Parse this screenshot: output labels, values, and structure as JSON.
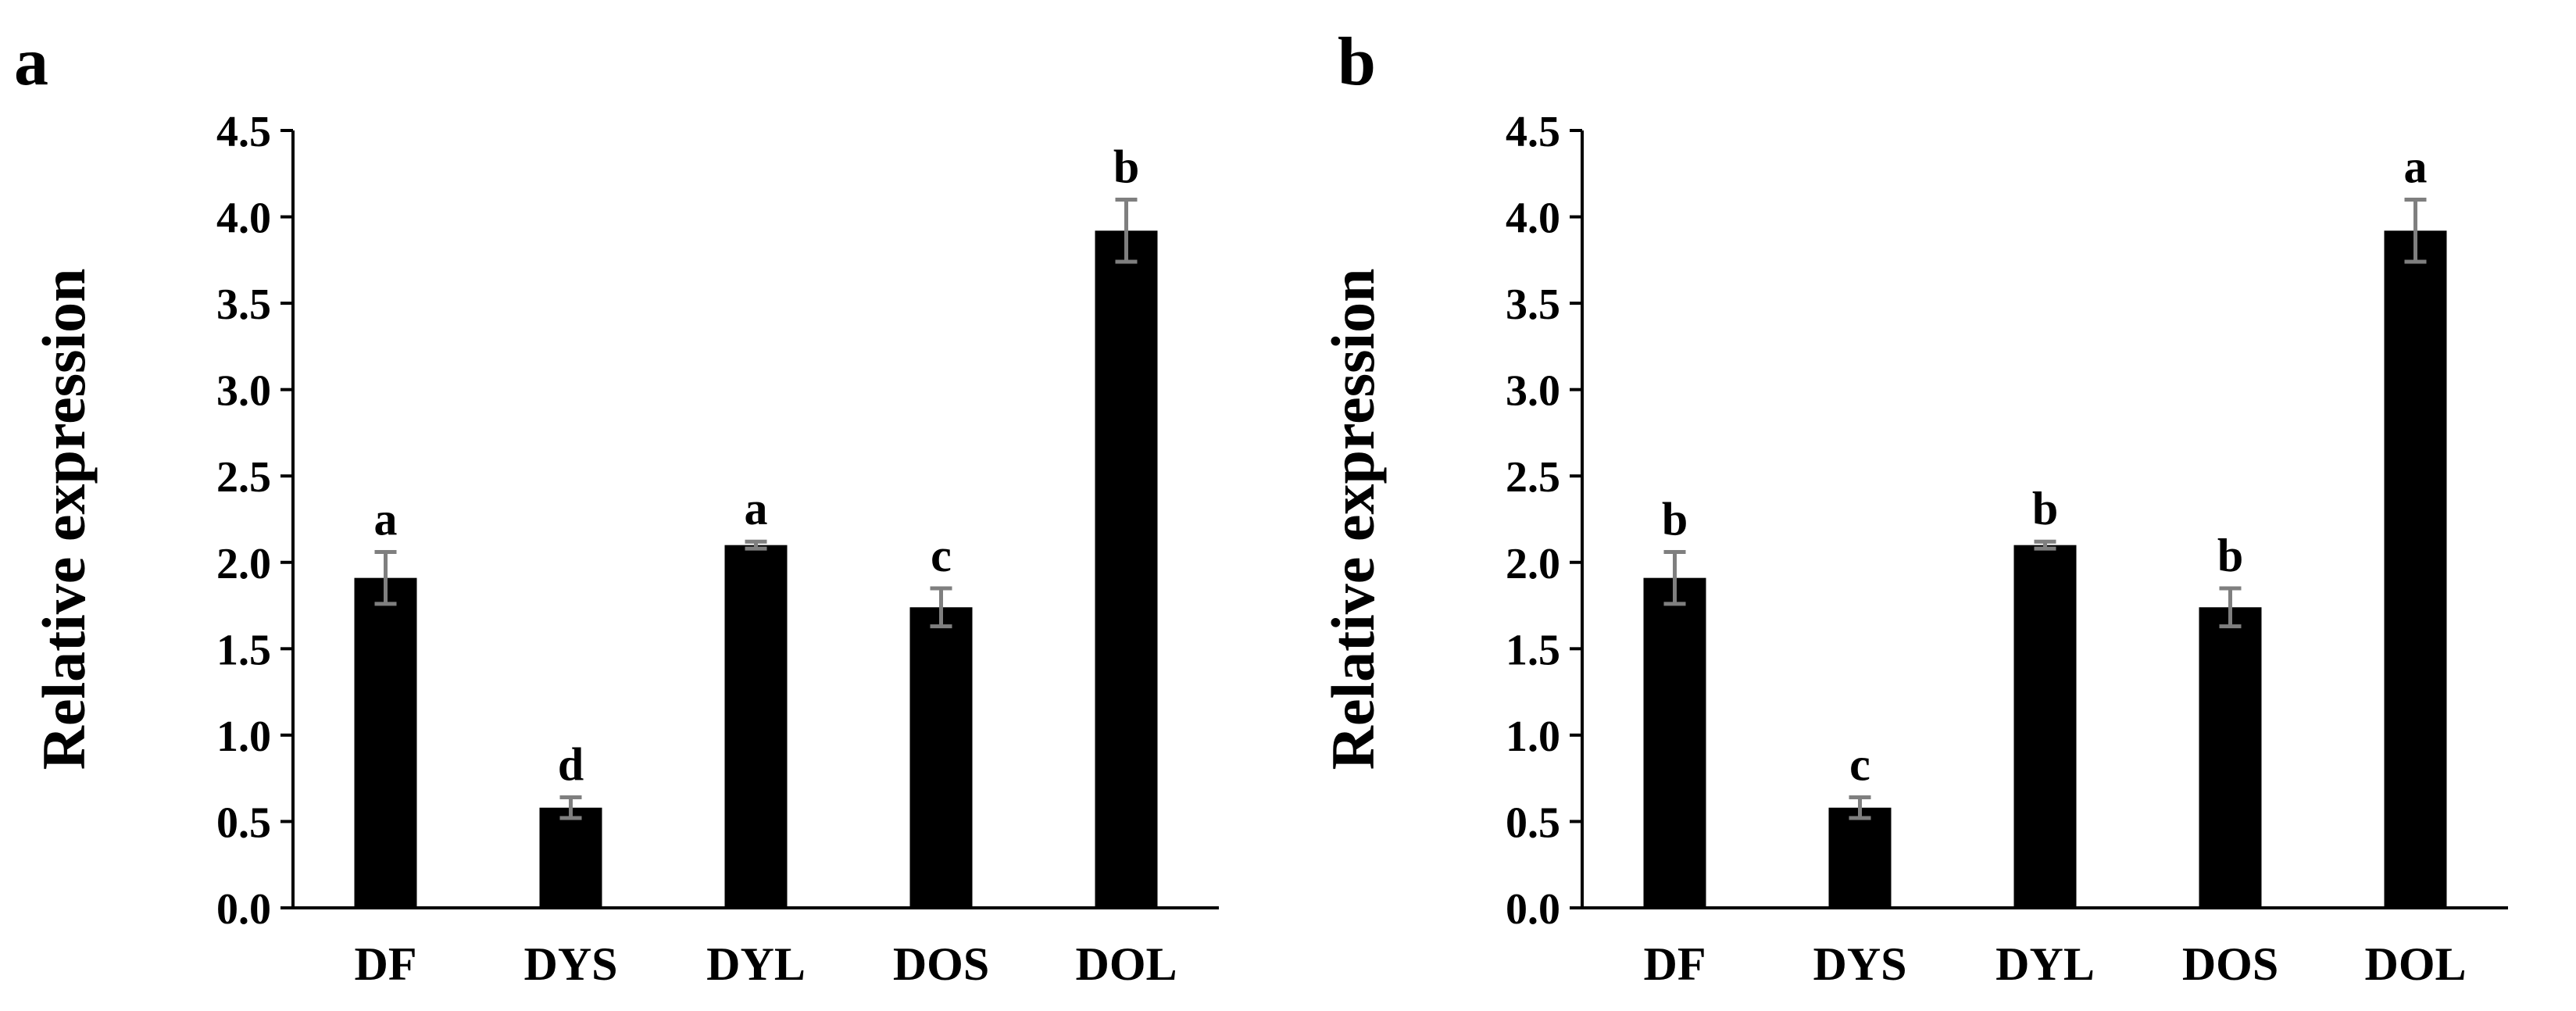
{
  "chart_data": [
    {
      "panel": "a",
      "type": "bar",
      "categories": [
        "DF",
        "DYS",
        "DYL",
        "DOS",
        "DOL"
      ],
      "values": [
        1.91,
        0.58,
        2.1,
        1.74,
        3.92
      ],
      "errors": [
        0.15,
        0.06,
        0.02,
        0.11,
        0.18
      ],
      "significance": [
        "a",
        "d",
        "a",
        "c",
        "b"
      ],
      "xlabel": "",
      "ylabel": "Relative expression",
      "ylim": [
        0,
        4.5
      ],
      "yticks": [
        "0.0",
        "0.5",
        "1.0",
        "1.5",
        "2.0",
        "2.5",
        "3.0",
        "3.5",
        "4.0",
        "4.5"
      ],
      "grid": false,
      "bar_color": "#000000",
      "error_bar_color": "#7f7f7f"
    },
    {
      "panel": "b",
      "type": "bar",
      "categories": [
        "DF",
        "DYS",
        "DYL",
        "DOS",
        "DOL"
      ],
      "values": [
        1.91,
        0.58,
        2.1,
        1.74,
        3.92
      ],
      "errors": [
        0.15,
        0.06,
        0.02,
        0.11,
        0.18
      ],
      "significance": [
        "b",
        "c",
        "b",
        "b",
        "a"
      ],
      "xlabel": "",
      "ylabel": "Relative expression",
      "ylim": [
        0,
        4.5
      ],
      "yticks": [
        "0.0",
        "0.5",
        "1.0",
        "1.5",
        "2.0",
        "2.5",
        "3.0",
        "3.5",
        "4.0",
        "4.5"
      ],
      "grid": false,
      "bar_color": "#000000",
      "error_bar_color": "#7f7f7f"
    }
  ]
}
